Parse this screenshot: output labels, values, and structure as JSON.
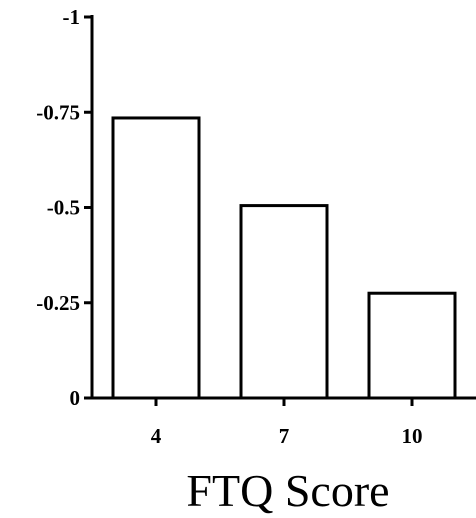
{
  "chart_data": {
    "type": "bar",
    "categories": [
      "4",
      "7",
      "10"
    ],
    "values": [
      -0.735,
      -0.505,
      -0.275
    ],
    "title": "",
    "xlabel": "FTQ Score",
    "ylabel": "",
    "ylim": [
      0,
      -1
    ],
    "yticks": [
      0,
      -0.25,
      -0.5,
      -0.75,
      -1
    ],
    "ytick_labels": [
      "0",
      "-0.25",
      "-0.5",
      "-0.75",
      "-1"
    ],
    "y_axis_inverted": true,
    "grid": false,
    "legend": "none",
    "bar_fill": "#ffffff",
    "bar_stroke": "#000000"
  }
}
